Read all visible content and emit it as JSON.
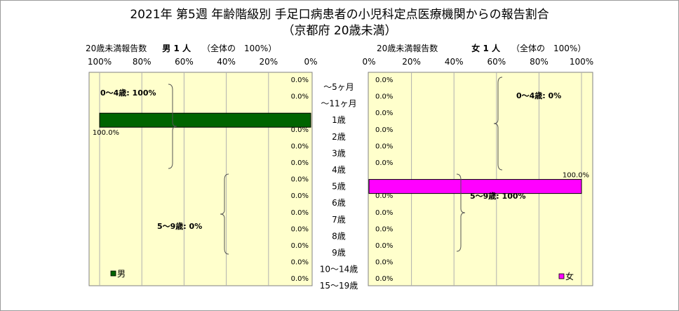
{
  "chart_data": {
    "type": "bar",
    "title": "2021年 第5週 年齢階級別 手足口病患者の小児科定点医療機関からの報告割合",
    "subtitle": "（京都府 20歳未満）",
    "categories": [
      "～5ヶ月",
      "～11ヶ月",
      "1歳",
      "2歳",
      "3歳",
      "4歳",
      "5歳",
      "6歳",
      "7歳",
      "8歳",
      "9歳",
      "10～14歳",
      "15～19歳"
    ],
    "xlim": [
      0,
      100
    ],
    "grid": true,
    "male": {
      "axis_label": "20歳未満報告数",
      "sex_label": "男",
      "count_label": "1 人",
      "total_label": "（全体の　100%）",
      "legend": "男",
      "color": "#006400",
      "ticks": [
        "100%",
        "80%",
        "60%",
        "40%",
        "20%",
        "0%"
      ],
      "values": [
        0,
        0,
        100,
        0,
        0,
        0,
        0,
        0,
        0,
        0,
        0,
        0,
        0
      ],
      "value_labels": [
        "0.0%",
        "0.0%",
        "100.0%",
        "0.0%",
        "0.0%",
        "0.0%",
        "0.0%",
        "0.0%",
        "0.0%",
        "0.0%",
        "0.0%",
        "0.0%",
        "0.0%"
      ],
      "group_labels": [
        "0～4歳: 100%",
        "5～9歳: 0%"
      ]
    },
    "female": {
      "axis_label": "20歳未満報告数",
      "sex_label": "女",
      "count_label": "1 人",
      "total_label": "（全体の　100%）",
      "legend": "女",
      "color": "#ff00ff",
      "ticks": [
        "0%",
        "20%",
        "40%",
        "60%",
        "80%",
        "100%"
      ],
      "values": [
        0,
        0,
        0,
        0,
        0,
        0,
        100,
        0,
        0,
        0,
        0,
        0,
        0
      ],
      "value_labels": [
        "0.0%",
        "0.0%",
        "0.0%",
        "0.0%",
        "0.0%",
        "0.0%",
        "100.0%",
        "0.0%",
        "0.0%",
        "0.0%",
        "0.0%",
        "0.0%",
        "0.0%"
      ],
      "group_labels": [
        "0～4歳: 0%",
        "5～9歳: 100%"
      ]
    },
    "plot_background": "#ffffcc"
  }
}
